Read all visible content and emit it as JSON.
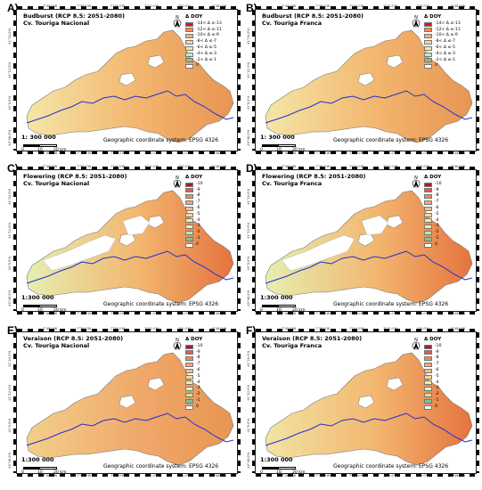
{
  "panels": [
    {
      "letter": "A)",
      "title1": "Budburst (RCP 8.5: 2051-2080)",
      "title2": "Cv. Touriga Nacional",
      "scale": "1: 300 000",
      "legend_title": "Δ DOY",
      "legend": [
        "-14< Δ ≤-13",
        "-12< Δ ≤-11",
        "-10< Δ ≤-9",
        "-8< Δ ≤-7",
        "-6< Δ ≤-5",
        "-4< Δ ≤-3",
        "-2< Δ ≤-1",
        "0"
      ],
      "colors": [
        "#d7191c",
        "#f08c4a",
        "#f6b36b",
        "#fbd690",
        "#f5e9a8",
        "#d3e6a6",
        "#7fbfa2",
        "#ffffff"
      ],
      "map": {
        "fill": "#f2b56e",
        "east": "#e89552",
        "west": "#f5e6a6",
        "blanks": false
      }
    },
    {
      "letter": "B)",
      "title1": "Budburst (RCP 8.5: 2051-2080)",
      "title2": "Cv. Touriga Franca",
      "scale": "1: 300 000",
      "legend_title": "Δ DOY",
      "legend": [
        "-14< Δ ≤-13",
        "-12< Δ ≤-11",
        "-10< Δ ≤-9",
        "-8< Δ ≤-7",
        "-6< Δ ≤-5",
        "-4< Δ ≤-3",
        "-2< Δ ≤-1",
        "0"
      ],
      "colors": [
        "#d7191c",
        "#f08c4a",
        "#f6b36b",
        "#fbd690",
        "#f5e9a8",
        "#d3e6a6",
        "#7fbfa2",
        "#ffffff"
      ],
      "map": {
        "fill": "#f2b56e",
        "east": "#e89552",
        "west": "#f5e6a6",
        "blanks": false
      }
    },
    {
      "letter": "C)",
      "title1": "Flowering (RCP 8.5: 2051-2080)",
      "title2": "Cv. Touriga Nacional",
      "scale": "1:300 000",
      "legend_title": "Δ DOY",
      "legend": [
        "-10",
        "-9",
        "-8",
        "-7",
        "-6",
        "-5",
        "-4",
        "-3",
        "-2",
        "-1",
        "0"
      ],
      "colors": [
        "#b2182b",
        "#d6604d",
        "#f08c4a",
        "#f4a582",
        "#f6c089",
        "#fbd690",
        "#f5e9a8",
        "#e8f0b0",
        "#c7e2a5",
        "#7fbfa2",
        "#ffffff"
      ],
      "map": {
        "fill": "#f2b56e",
        "east": "#e5733f",
        "west": "#e6efb2",
        "blanks": true
      }
    },
    {
      "letter": "D)",
      "title1": "Flowering (RCP 8.5: 2051-2080)",
      "title2": "Cv. Touriga Franca",
      "scale": "1:300 000",
      "legend_title": "Δ DOY",
      "legend": [
        "-10",
        "-9",
        "-8",
        "-7",
        "-6",
        "-5",
        "-4",
        "-3",
        "-2",
        "-1",
        "0"
      ],
      "colors": [
        "#b2182b",
        "#d6604d",
        "#f08c4a",
        "#f4a582",
        "#f6c089",
        "#fbd690",
        "#f5e9a8",
        "#e8f0b0",
        "#c7e2a5",
        "#7fbfa2",
        "#ffffff"
      ],
      "map": {
        "fill": "#f2b56e",
        "east": "#e5733f",
        "west": "#e6efb2",
        "blanks": true
      }
    },
    {
      "letter": "E)",
      "title1": "Veraison (RCP 8.5: 2051-2080)",
      "title2": "Cv. Touriga Nacional",
      "scale": "1:300 000",
      "legend_title": "Δ DOY",
      "legend": [
        "-10",
        "-9",
        "-8",
        "-7",
        "-6",
        "-5",
        "-4",
        "-3",
        "-2",
        "-1",
        "0"
      ],
      "colors": [
        "#b2182b",
        "#d6604d",
        "#f08c4a",
        "#f4a582",
        "#f6c089",
        "#fbd690",
        "#f5e9a8",
        "#e8f0b0",
        "#c7e2a5",
        "#7fbfa2",
        "#ffffff"
      ],
      "map": {
        "fill": "#f0a86a",
        "east": "#e89552",
        "west": "#f3cf8a",
        "blanks": false
      }
    },
    {
      "letter": "F)",
      "title1": "Veraison (RCP 8.5: 2051-2080)",
      "title2": "Cv. Touriga Franca",
      "scale": "1:300 000",
      "legend_title": "Δ DOY",
      "legend": [
        "-10",
        "-9",
        "-8",
        "-7",
        "-6",
        "-5",
        "-4",
        "-3",
        "-2",
        "-1",
        "0"
      ],
      "colors": [
        "#b2182b",
        "#d6604d",
        "#f08c4a",
        "#f4a582",
        "#f6c089",
        "#fbd690",
        "#f5e9a8",
        "#e8f0b0",
        "#c7e2a5",
        "#7fbfa2",
        "#ffffff"
      ],
      "map": {
        "fill": "#f2b56e",
        "east": "#e5733f",
        "west": "#f2e4a4",
        "blanks": false
      }
    }
  ],
  "common": {
    "geo": "Geographic coordinate system: EPSG 4326",
    "scale_labels": [
      "0",
      "10",
      "20 km"
    ],
    "lon_ticks": [
      "7°48.0'W",
      "7°36.0'W",
      "7°24.0'W",
      "7°12.0'W",
      "7°0.0'W",
      "6°48.0'W"
    ],
    "lat_ticks": [
      "41°24.0'N",
      "41°12.0'N",
      "41°0.0'N",
      "40°48.0'N"
    ]
  }
}
